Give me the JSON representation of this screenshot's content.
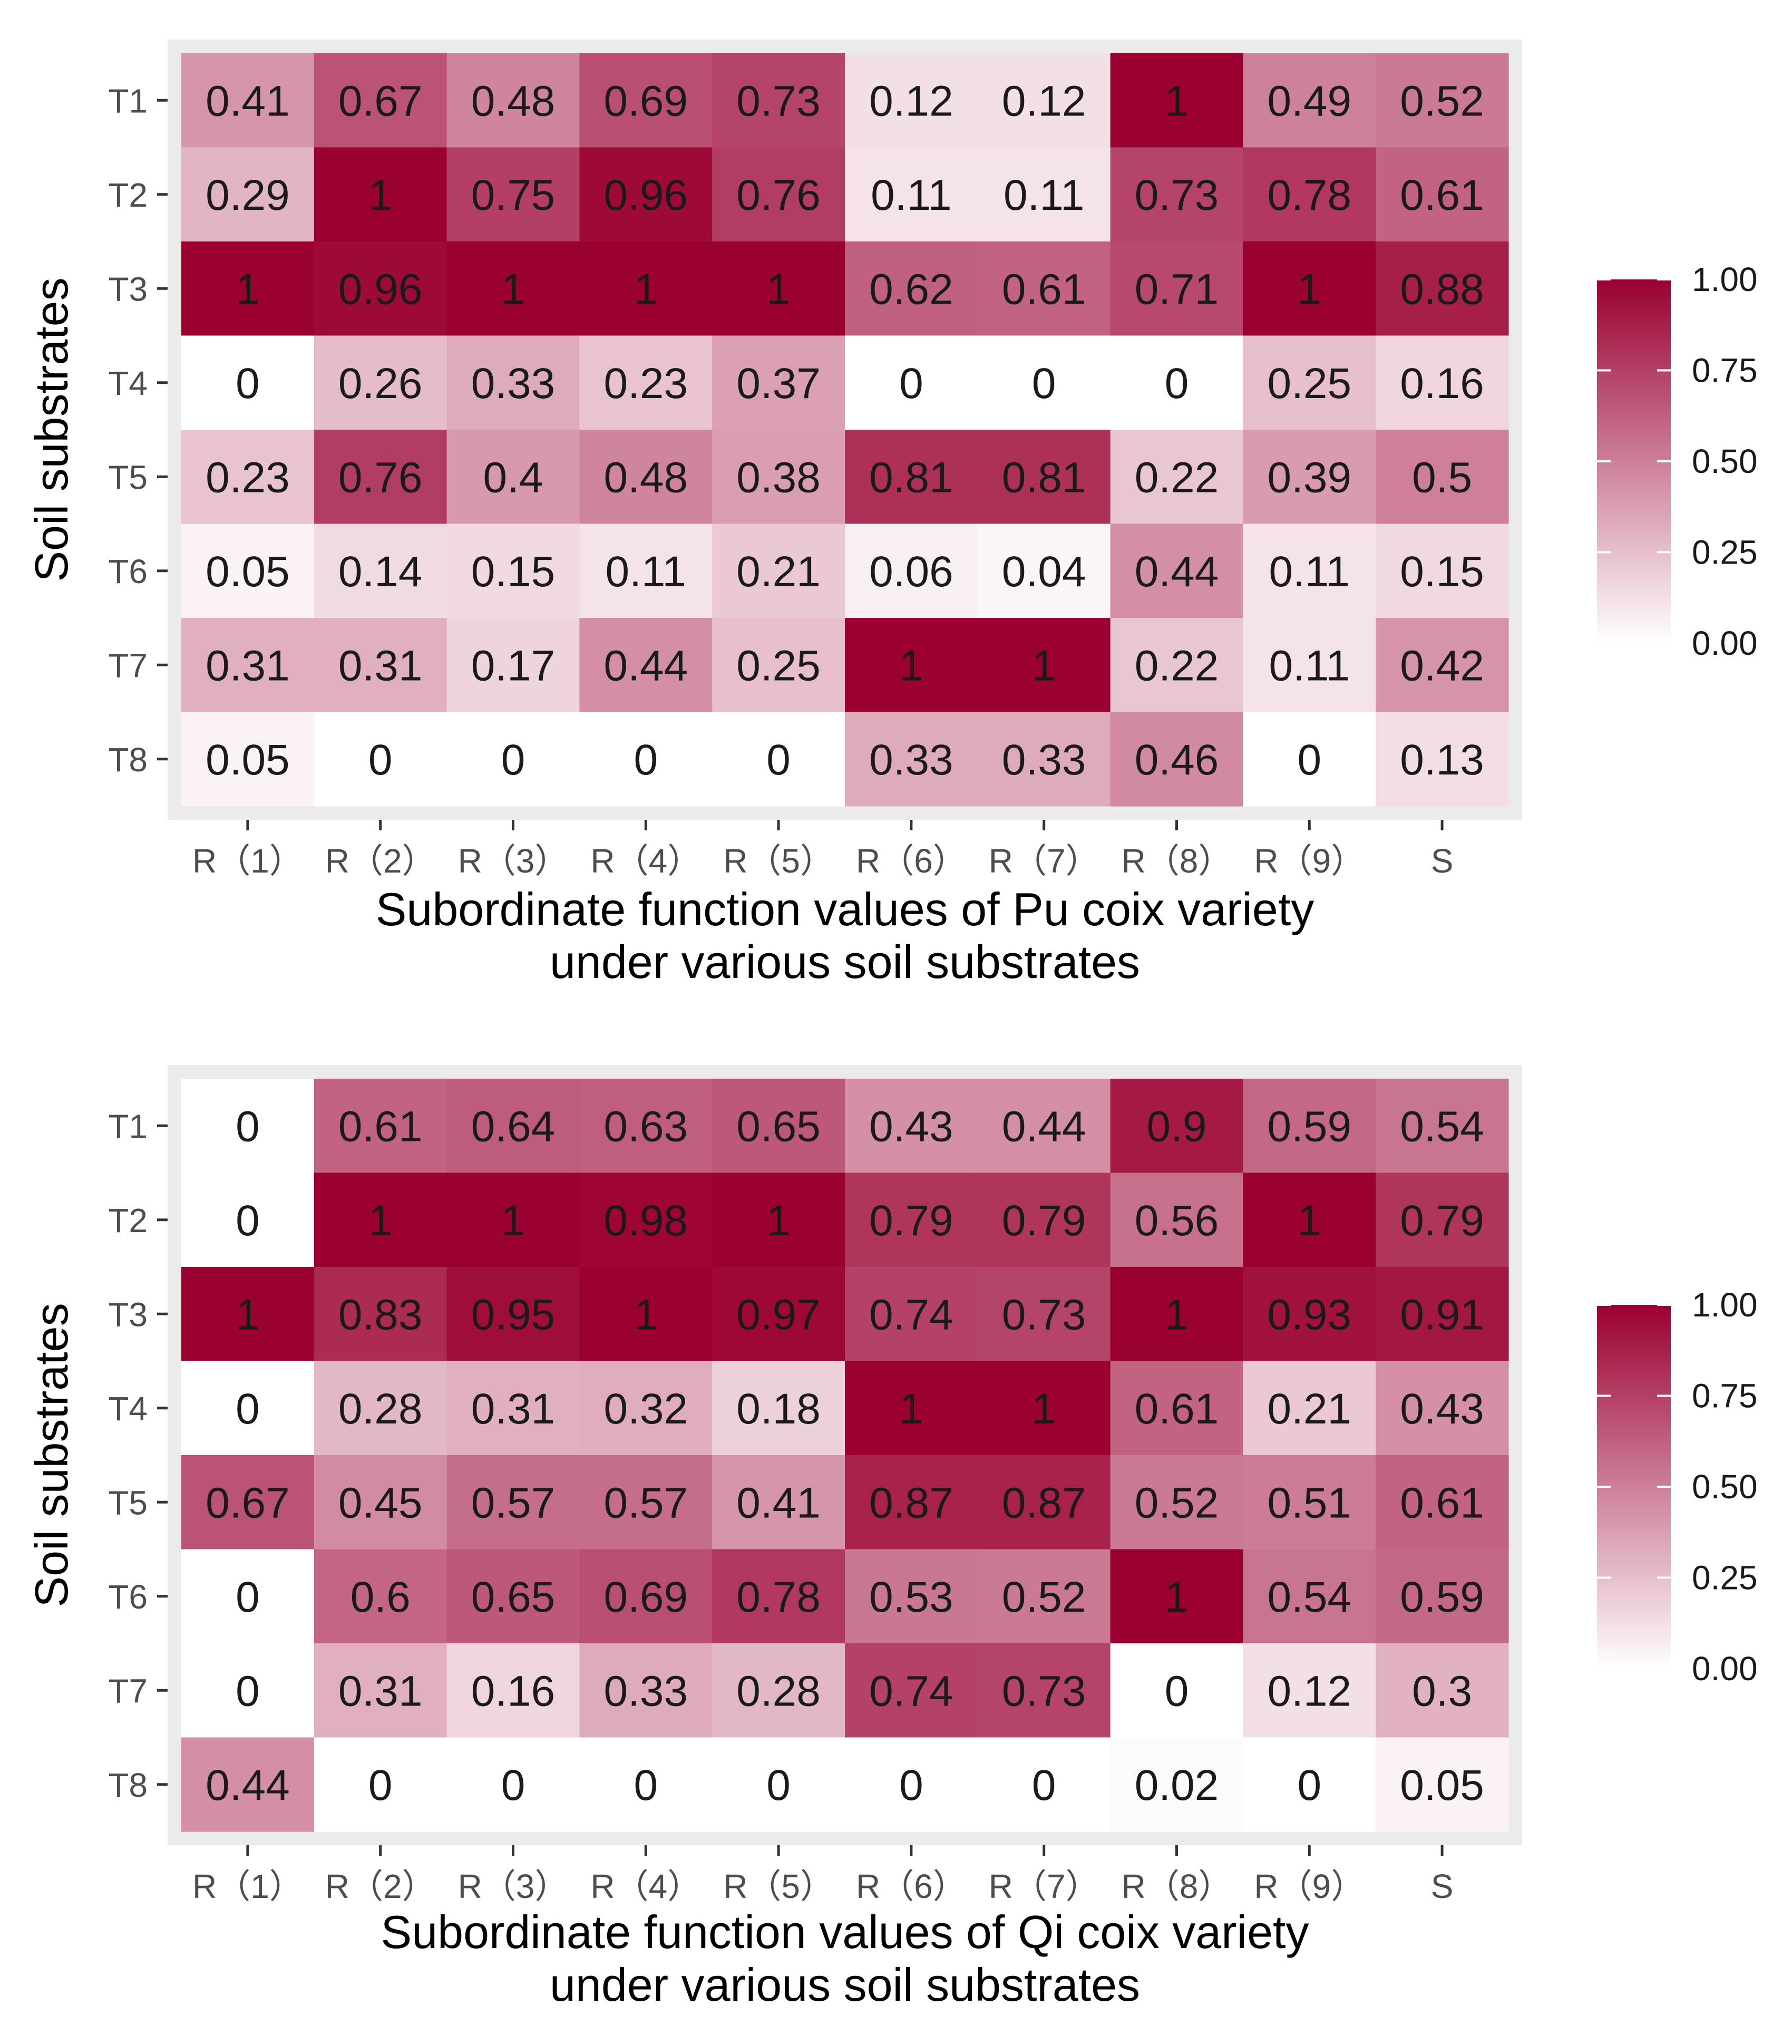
{
  "chart_data": [
    {
      "type": "heatmap",
      "title": "",
      "xlabel": "Subordinate function values of Pu coix variety\nunder various soil substrates",
      "ylabel": "Soil substrates",
      "x_categories": [
        "R（1）",
        "R（2）",
        "R（3）",
        "R（4）",
        "R（5）",
        "R（6）",
        "R（7）",
        "R（8）",
        "R（9）",
        "S"
      ],
      "y_categories": [
        "T1",
        "T2",
        "T3",
        "T4",
        "T5",
        "T6",
        "T7",
        "T8"
      ],
      "values": [
        [
          0.41,
          0.67,
          0.48,
          0.69,
          0.73,
          0.12,
          0.12,
          1,
          0.49,
          0.52
        ],
        [
          0.29,
          1,
          0.75,
          0.96,
          0.76,
          0.11,
          0.11,
          0.73,
          0.78,
          0.61
        ],
        [
          1,
          0.96,
          1,
          1,
          1,
          0.62,
          0.61,
          0.71,
          1,
          0.88
        ],
        [
          0,
          0.26,
          0.33,
          0.23,
          0.37,
          0,
          0,
          0,
          0.25,
          0.16
        ],
        [
          0.23,
          0.76,
          0.4,
          0.48,
          0.38,
          0.81,
          0.81,
          0.22,
          0.39,
          0.5
        ],
        [
          0.05,
          0.14,
          0.15,
          0.11,
          0.21,
          0.06,
          0.04,
          0.44,
          0.11,
          0.15
        ],
        [
          0.31,
          0.31,
          0.17,
          0.44,
          0.25,
          1,
          1,
          0.22,
          0.11,
          0.42
        ],
        [
          0.05,
          0,
          0,
          0,
          0,
          0.33,
          0.33,
          0.46,
          0,
          0.13
        ]
      ],
      "colorbar": {
        "range": [
          0,
          1
        ],
        "ticks": [
          "0.00",
          "0.25",
          "0.50",
          "0.75",
          "1.00"
        ],
        "low_color": "#ffffff",
        "high_color": "#9a0030"
      }
    },
    {
      "type": "heatmap",
      "title": "",
      "xlabel": "Subordinate function values of Qi coix variety\nunder various soil substrates",
      "ylabel": "Soil substrates",
      "x_categories": [
        "R（1）",
        "R（2）",
        "R（3）",
        "R（4）",
        "R（5）",
        "R（6）",
        "R（7）",
        "R（8）",
        "R（9）",
        "S"
      ],
      "y_categories": [
        "T1",
        "T2",
        "T3",
        "T4",
        "T5",
        "T6",
        "T7",
        "T8"
      ],
      "values": [
        [
          0,
          0.61,
          0.64,
          0.63,
          0.65,
          0.43,
          0.44,
          0.9,
          0.59,
          0.54
        ],
        [
          0,
          1,
          1,
          0.98,
          1,
          0.79,
          0.79,
          0.56,
          1,
          0.79
        ],
        [
          1,
          0.83,
          0.95,
          1,
          0.97,
          0.74,
          0.73,
          1,
          0.93,
          0.91
        ],
        [
          0,
          0.28,
          0.31,
          0.32,
          0.18,
          1,
          1,
          0.61,
          0.21,
          0.43
        ],
        [
          0.67,
          0.45,
          0.57,
          0.57,
          0.41,
          0.87,
          0.87,
          0.52,
          0.51,
          0.61
        ],
        [
          0,
          0.6,
          0.65,
          0.69,
          0.78,
          0.53,
          0.52,
          1,
          0.54,
          0.59
        ],
        [
          0,
          0.31,
          0.16,
          0.33,
          0.28,
          0.74,
          0.73,
          0,
          0.12,
          0.3
        ],
        [
          0.44,
          0,
          0,
          0,
          0,
          0,
          0,
          0.02,
          0,
          0.05
        ]
      ],
      "colorbar": {
        "range": [
          0,
          1
        ],
        "ticks": [
          "0.00",
          "0.25",
          "0.50",
          "0.75",
          "1.00"
        ],
        "low_color": "#ffffff",
        "high_color": "#9a0030"
      }
    }
  ]
}
